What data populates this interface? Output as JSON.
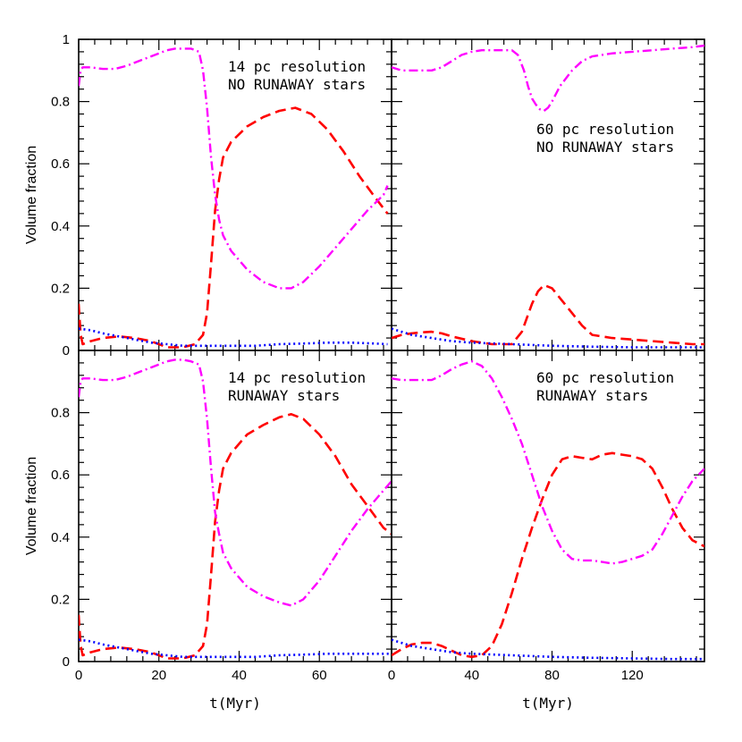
{
  "colors": {
    "red_dashed": "#ff0000",
    "magenta_dashdot": "#ff00ff",
    "blue_dotted": "#0000ff"
  },
  "chart_data": [
    {
      "type": "line",
      "annotation": [
        "14 pc resolution",
        "NO RUNAWAY stars"
      ],
      "ylabel": "Volume fraction",
      "xlabel": "",
      "xlim": [
        0,
        78
      ],
      "ylim": [
        0,
        1
      ],
      "xticks": [],
      "yticks": [
        "0",
        "0.2",
        "0.4",
        "0.6",
        "0.8",
        "1"
      ],
      "series": [
        {
          "style": "red-dashed",
          "x": [
            0,
            0.5,
            1,
            3,
            6,
            10,
            14,
            18,
            22,
            26,
            29,
            31,
            32,
            33,
            34,
            35,
            36,
            38,
            42,
            46,
            50,
            54,
            58,
            62,
            66,
            70,
            74,
            77
          ],
          "y": [
            0.15,
            0.05,
            0.02,
            0.03,
            0.04,
            0.045,
            0.04,
            0.03,
            0.01,
            0.01,
            0.02,
            0.05,
            0.12,
            0.28,
            0.45,
            0.55,
            0.62,
            0.67,
            0.72,
            0.75,
            0.77,
            0.78,
            0.76,
            0.71,
            0.64,
            0.56,
            0.49,
            0.44
          ]
        },
        {
          "style": "magenta-dashdot",
          "x": [
            0,
            0.5,
            1,
            3,
            6,
            9,
            12,
            16,
            20,
            22,
            24,
            26,
            28,
            30,
            31,
            32,
            33,
            34,
            35,
            36,
            38,
            42,
            46,
            50,
            53,
            56,
            60,
            64,
            68,
            72,
            76,
            77
          ],
          "y": [
            0.85,
            0.9,
            0.91,
            0.91,
            0.905,
            0.905,
            0.915,
            0.935,
            0.955,
            0.965,
            0.97,
            0.97,
            0.97,
            0.96,
            0.9,
            0.78,
            0.62,
            0.5,
            0.42,
            0.37,
            0.32,
            0.26,
            0.22,
            0.2,
            0.2,
            0.22,
            0.27,
            0.33,
            0.39,
            0.45,
            0.5,
            0.53
          ]
        },
        {
          "style": "blue-dotted",
          "x": [
            0,
            3,
            6,
            10,
            14,
            18,
            22,
            26,
            30,
            34,
            38,
            44,
            50,
            56,
            62,
            68,
            74,
            77
          ],
          "y": [
            0.07,
            0.065,
            0.055,
            0.045,
            0.035,
            0.025,
            0.02,
            0.015,
            0.015,
            0.015,
            0.015,
            0.015,
            0.02,
            0.022,
            0.025,
            0.025,
            0.022,
            0.02
          ]
        }
      ]
    },
    {
      "type": "line",
      "annotation": [
        "60 pc resolution",
        "NO RUNAWAY stars"
      ],
      "ylabel": "",
      "xlabel": "",
      "xlim": [
        0,
        156
      ],
      "ylim": [
        0,
        1
      ],
      "xticks": [],
      "yticks": [],
      "series": [
        {
          "style": "red-dashed",
          "x": [
            0,
            5,
            10,
            15,
            20,
            25,
            30,
            40,
            50,
            60,
            65,
            70,
            73,
            76,
            80,
            85,
            90,
            95,
            100,
            110,
            120,
            130,
            140,
            150,
            156
          ],
          "y": [
            0.04,
            0.05,
            0.055,
            0.058,
            0.06,
            0.055,
            0.045,
            0.03,
            0.02,
            0.02,
            0.06,
            0.15,
            0.19,
            0.21,
            0.2,
            0.16,
            0.12,
            0.08,
            0.05,
            0.04,
            0.035,
            0.03,
            0.025,
            0.02,
            0.02
          ]
        },
        {
          "style": "magenta-dashdot",
          "x": [
            0,
            5,
            10,
            20,
            25,
            30,
            35,
            40,
            45,
            50,
            55,
            60,
            63,
            66,
            68,
            70,
            72,
            74,
            76,
            78,
            80,
            84,
            90,
            95,
            100,
            110,
            120,
            130,
            140,
            150,
            156
          ],
          "y": [
            0.91,
            0.9,
            0.9,
            0.9,
            0.91,
            0.93,
            0.95,
            0.96,
            0.965,
            0.965,
            0.965,
            0.965,
            0.95,
            0.9,
            0.85,
            0.81,
            0.79,
            0.775,
            0.77,
            0.78,
            0.8,
            0.85,
            0.9,
            0.93,
            0.945,
            0.955,
            0.96,
            0.965,
            0.97,
            0.975,
            0.98
          ]
        },
        {
          "style": "blue-dotted",
          "x": [
            0,
            5,
            10,
            20,
            30,
            40,
            60,
            80,
            100,
            120,
            140,
            156
          ],
          "y": [
            0.07,
            0.06,
            0.05,
            0.04,
            0.03,
            0.025,
            0.02,
            0.015,
            0.012,
            0.01,
            0.01,
            0.01
          ]
        }
      ]
    },
    {
      "type": "line",
      "annotation": [
        "14 pc resolution",
        "RUNAWAY stars"
      ],
      "ylabel": "Volume fraction",
      "xlabel": "t(Myr)",
      "xlim": [
        0,
        78
      ],
      "ylim": [
        0,
        1
      ],
      "xticks": [
        "0",
        "20",
        "40",
        "60"
      ],
      "yticks": [
        "0",
        "0.2",
        "0.4",
        "0.6",
        "0.8"
      ],
      "series": [
        {
          "style": "red-dashed",
          "x": [
            0,
            0.5,
            1,
            3,
            6,
            10,
            14,
            18,
            22,
            26,
            29,
            31,
            32,
            33,
            34,
            35,
            36,
            38,
            42,
            46,
            50,
            53,
            56,
            60,
            64,
            68,
            72,
            76,
            78
          ],
          "y": [
            0.15,
            0.05,
            0.02,
            0.03,
            0.04,
            0.045,
            0.04,
            0.03,
            0.01,
            0.01,
            0.02,
            0.05,
            0.12,
            0.28,
            0.45,
            0.55,
            0.62,
            0.67,
            0.73,
            0.76,
            0.785,
            0.795,
            0.78,
            0.73,
            0.66,
            0.57,
            0.5,
            0.43,
            0.41
          ]
        },
        {
          "style": "magenta-dashdot",
          "x": [
            0,
            0.5,
            1,
            3,
            6,
            9,
            12,
            16,
            20,
            22,
            24,
            26,
            28,
            30,
            31,
            32,
            33,
            34,
            35,
            36,
            38,
            42,
            46,
            50,
            53,
            56,
            60,
            64,
            68,
            72,
            76,
            78
          ],
          "y": [
            0.85,
            0.9,
            0.91,
            0.91,
            0.905,
            0.905,
            0.915,
            0.935,
            0.955,
            0.965,
            0.97,
            0.97,
            0.965,
            0.955,
            0.9,
            0.78,
            0.62,
            0.48,
            0.41,
            0.35,
            0.3,
            0.24,
            0.21,
            0.19,
            0.18,
            0.2,
            0.26,
            0.34,
            0.42,
            0.49,
            0.55,
            0.58
          ]
        },
        {
          "style": "blue-dotted",
          "x": [
            0,
            3,
            6,
            10,
            14,
            18,
            22,
            26,
            30,
            34,
            38,
            44,
            50,
            56,
            62,
            68,
            74,
            78
          ],
          "y": [
            0.07,
            0.065,
            0.055,
            0.045,
            0.035,
            0.025,
            0.02,
            0.015,
            0.015,
            0.015,
            0.015,
            0.015,
            0.02,
            0.022,
            0.025,
            0.025,
            0.025,
            0.025
          ]
        }
      ]
    },
    {
      "type": "line",
      "annotation": [
        "60 pc resolution",
        "RUNAWAY stars"
      ],
      "ylabel": "",
      "xlabel": "t(Myr)",
      "xlim": [
        0,
        156
      ],
      "ylim": [
        0,
        1
      ],
      "xticks": [
        "0",
        "40",
        "80",
        "120"
      ],
      "yticks": [],
      "series": [
        {
          "style": "red-dashed",
          "x": [
            0,
            5,
            10,
            15,
            20,
            25,
            30,
            35,
            40,
            45,
            50,
            55,
            60,
            65,
            70,
            75,
            80,
            85,
            90,
            95,
            100,
            105,
            110,
            115,
            120,
            125,
            130,
            135,
            140,
            145,
            150,
            156
          ],
          "y": [
            0.02,
            0.04,
            0.055,
            0.06,
            0.06,
            0.05,
            0.035,
            0.02,
            0.015,
            0.02,
            0.05,
            0.12,
            0.22,
            0.33,
            0.43,
            0.52,
            0.6,
            0.65,
            0.66,
            0.655,
            0.65,
            0.665,
            0.67,
            0.665,
            0.66,
            0.65,
            0.62,
            0.56,
            0.49,
            0.43,
            0.39,
            0.37
          ]
        },
        {
          "style": "magenta-dashdot",
          "x": [
            0,
            5,
            10,
            15,
            20,
            25,
            30,
            35,
            40,
            45,
            50,
            55,
            60,
            65,
            70,
            75,
            80,
            85,
            90,
            95,
            100,
            105,
            110,
            115,
            120,
            125,
            130,
            135,
            140,
            145,
            150,
            156
          ],
          "y": [
            0.91,
            0.905,
            0.905,
            0.905,
            0.905,
            0.92,
            0.94,
            0.955,
            0.965,
            0.95,
            0.91,
            0.85,
            0.78,
            0.7,
            0.6,
            0.5,
            0.42,
            0.36,
            0.33,
            0.325,
            0.325,
            0.32,
            0.315,
            0.32,
            0.33,
            0.34,
            0.36,
            0.41,
            0.47,
            0.53,
            0.58,
            0.62
          ]
        },
        {
          "style": "blue-dotted",
          "x": [
            0,
            5,
            10,
            20,
            30,
            40,
            60,
            80,
            100,
            120,
            140,
            156
          ],
          "y": [
            0.07,
            0.06,
            0.05,
            0.04,
            0.03,
            0.025,
            0.02,
            0.015,
            0.012,
            0.01,
            0.008,
            0.008
          ]
        }
      ]
    }
  ]
}
